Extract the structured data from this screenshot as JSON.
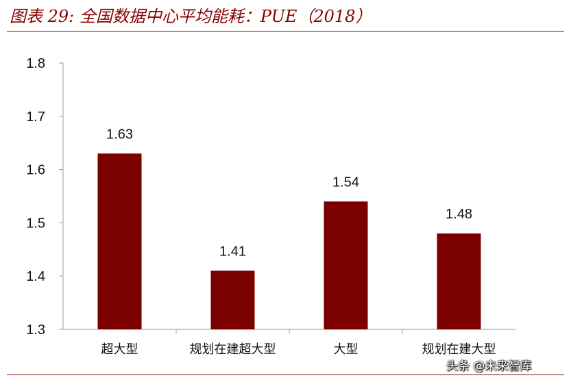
{
  "header": {
    "title": "图表 29:  全国数据中心平均能耗：PUE（2018）"
  },
  "watermark": "头条 @未来智库",
  "colors": {
    "bar": "#7b0000",
    "accent": "#8b0000"
  },
  "chart_data": {
    "type": "bar",
    "title": "",
    "xlabel": "",
    "ylabel": "",
    "categories": [
      "超大型",
      "规划在建超大型",
      "大型",
      "规划在建大型"
    ],
    "values": [
      1.63,
      1.41,
      1.54,
      1.48
    ],
    "data_labels": [
      "1.63",
      "1.41",
      "1.54",
      "1.48"
    ],
    "ylim": [
      1.3,
      1.8
    ],
    "yticks": [
      1.3,
      1.4,
      1.5,
      1.6,
      1.7,
      1.8
    ],
    "ytick_labels": [
      "1.3",
      "1.4",
      "1.5",
      "1.6",
      "1.7",
      "1.8"
    ],
    "grid": false,
    "legend": "none"
  }
}
